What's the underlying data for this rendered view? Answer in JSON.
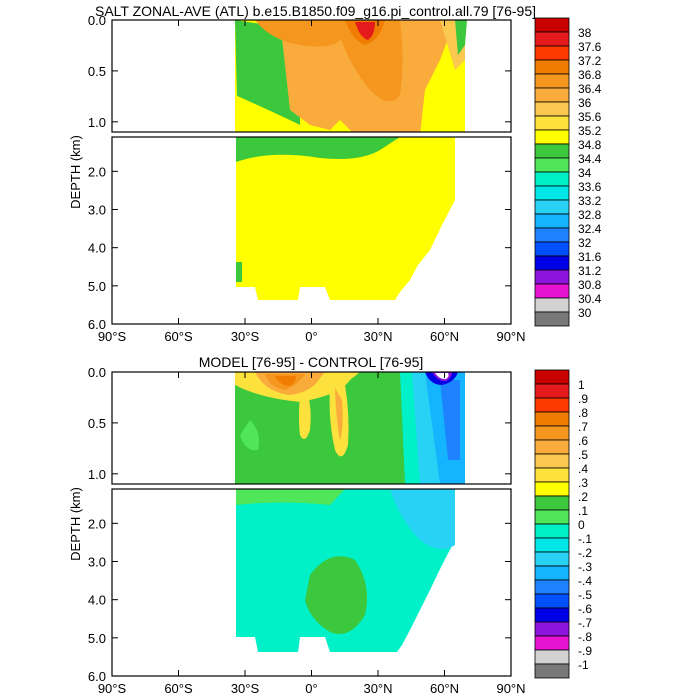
{
  "chart_data": [
    {
      "type": "contour",
      "title": "SALT ZONAL-AVE (ATL) b.e15.B1850.f09_g16.pi_control.all.79 [76-95]",
      "ylabel": "DEPTH (km)",
      "xlabel": "",
      "x_ticks": [
        "90°S",
        "60°S",
        "30°S",
        "0°",
        "30°N",
        "60°N",
        "90°N"
      ],
      "y_ticks_upper": [
        "0.0",
        "0.5",
        "1.0"
      ],
      "y_ticks_lower": [
        "2.0",
        "3.0",
        "4.0",
        "5.0",
        "6.0"
      ],
      "xlim": [
        -90,
        90
      ],
      "ylim_upper_km": [
        0,
        1.1
      ],
      "ylim_lower_km": [
        1.1,
        6.0
      ],
      "colorbar_labels": [
        "38",
        "37.6",
        "37.2",
        "36.8",
        "36.4",
        "36",
        "35.6",
        "35.2",
        "34.8",
        "34.4",
        "34",
        "33.6",
        "33.2",
        "32.8",
        "32.4",
        "32",
        "31.6",
        "31.2",
        "30.8",
        "30.4",
        "30"
      ],
      "colorbar_colors": [
        "#c80000",
        "#e41a1c",
        "#ff3a00",
        "#f07d00",
        "#f5961e",
        "#f9ab3c",
        "#fbc850",
        "#fde13c",
        "#ffff00",
        "#3cc83c",
        "#50e65a",
        "#00f0c8",
        "#00e6e6",
        "#28d2f5",
        "#14b4ff",
        "#1e82ff",
        "#0050ff",
        "#0000e6",
        "#8c14dc",
        "#e614d2",
        "#d2d2d2",
        "#787878"
      ],
      "fields": {
        "dominant_deep_value": "35.2 band (yellow)",
        "max_region": "near 20°N surface, > 37.2",
        "low_region": "south of 30°S upper ocean, 34.8 band"
      }
    },
    {
      "type": "contour",
      "title": "MODEL [76-95] - CONTROL [76-95]",
      "ylabel": "DEPTH (km)",
      "xlabel": "",
      "x_ticks": [
        "90°S",
        "60°S",
        "30°S",
        "0°",
        "30°N",
        "60°N",
        "90°N"
      ],
      "y_ticks_upper": [
        "0.0",
        "0.5",
        "1.0"
      ],
      "y_ticks_lower": [
        "2.0",
        "3.0",
        "4.0",
        "5.0",
        "6.0"
      ],
      "xlim": [
        -90,
        90
      ],
      "ylim_upper_km": [
        0,
        1.1
      ],
      "ylim_lower_km": [
        1.1,
        6.0
      ],
      "colorbar_labels": [
        "1",
        ".9",
        ".8",
        ".7",
        ".6",
        ".5",
        ".4",
        ".3",
        ".2",
        ".1",
        "0",
        "-.1",
        "-.2",
        "-.3",
        "-.4",
        "-.5",
        "-.6",
        "-.7",
        "-.8",
        "-.9",
        "-1"
      ],
      "colorbar_colors": [
        "#c80000",
        "#e41a1c",
        "#ff3a00",
        "#f07d00",
        "#f5961e",
        "#f9ab3c",
        "#fbc850",
        "#fde13c",
        "#ffff00",
        "#3cc83c",
        "#50e65a",
        "#00f0c8",
        "#00e6e6",
        "#28d2f5",
        "#14b4ff",
        "#1e82ff",
        "#0050ff",
        "#0000e6",
        "#8c14dc",
        "#e614d2",
        "#d2d2d2",
        "#787878"
      ],
      "fields": {
        "dominant_deep_value": "-.1 to 0 band (cyan)",
        "positive_region": "subtropical upper ocean 0-0.7 km, up to .5",
        "negative_region": "north of 40°N, down to -.9 near 55°N surface"
      }
    }
  ]
}
